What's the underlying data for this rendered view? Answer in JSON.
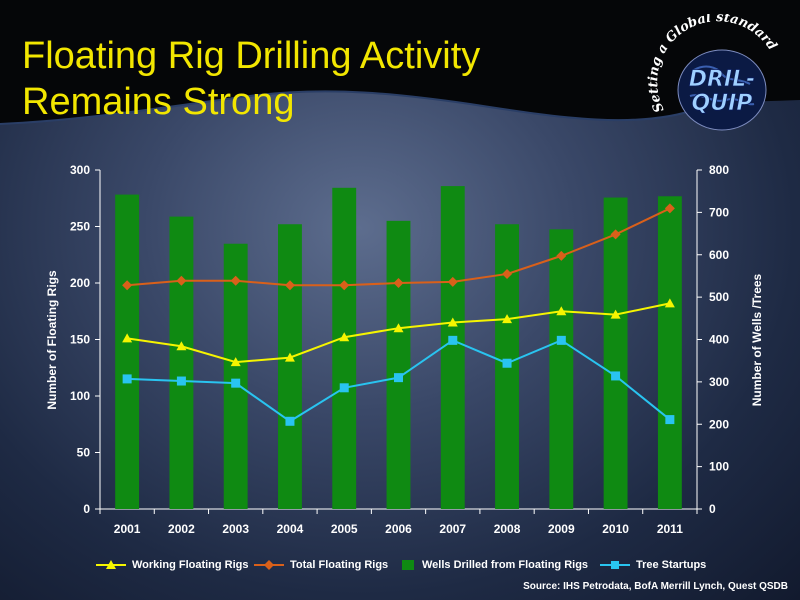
{
  "title": {
    "line1": "Floating Rig Drilling Activity",
    "line2": "Remains Strong"
  },
  "logo": {
    "tagline": "Setting a Global standard",
    "line1": "DRIL-",
    "line2": "QUIP"
  },
  "source": "Source:  IHS Petrodata, BofA Merrill Lynch, Quest QSDB",
  "colors": {
    "title": "#f2e600",
    "working": "#f5f500",
    "total": "#d9601a",
    "wells": "#0f8a12",
    "tree": "#29c4f0"
  },
  "chart_data": {
    "type": "bar",
    "categories": [
      "2001",
      "2002",
      "2003",
      "2004",
      "2005",
      "2006",
      "2007",
      "2008",
      "2009",
      "2010",
      "2011"
    ],
    "ylabel": "Number of Floating Rigs",
    "y2label": "Number of Wells /Trees",
    "ylim": [
      0,
      300
    ],
    "y2lim": [
      0,
      800
    ],
    "yticks": [
      "0",
      "50",
      "100",
      "150",
      "200",
      "250",
      "300"
    ],
    "y2ticks": [
      "0",
      "100",
      "200",
      "300",
      "400",
      "500",
      "600",
      "700",
      "800"
    ],
    "legend_position": "bottom",
    "series": [
      {
        "name": "Working Floating Rigs",
        "type": "line",
        "axis": "left",
        "marker": "triangle",
        "values": [
          151,
          144,
          130,
          134,
          152,
          160,
          165,
          168,
          175,
          172,
          182
        ]
      },
      {
        "name": "Total Floating Rigs",
        "type": "line",
        "axis": "left",
        "marker": "diamond",
        "values": [
          198,
          202,
          202,
          198,
          198,
          200,
          201,
          208,
          224,
          243,
          266
        ]
      },
      {
        "name": "Wells Drilled from Floating Rigs",
        "type": "bar",
        "axis": "right",
        "marker": "square",
        "values": [
          742,
          690,
          626,
          672,
          758,
          680,
          762,
          672,
          660,
          735,
          738
        ]
      },
      {
        "name": "Tree Startups",
        "type": "line",
        "axis": "right",
        "marker": "square",
        "values": [
          307,
          302,
          297,
          207,
          286,
          310,
          398,
          344,
          398,
          314,
          211
        ]
      }
    ]
  }
}
